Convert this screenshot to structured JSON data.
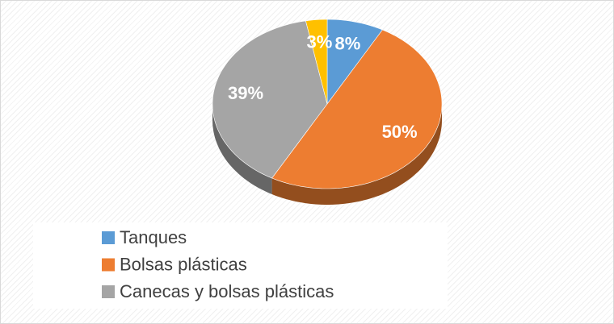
{
  "chart_data": {
    "type": "pie",
    "categories": [
      "Tanques",
      "Bolsas plásticas",
      "Canecas y bolsas plásticas",
      null
    ],
    "values": [
      8,
      50,
      39,
      3
    ],
    "value_labels": [
      "8%",
      "50%",
      "39%",
      "3%"
    ],
    "colors": [
      "#5b9bd5",
      "#ed7d31",
      "#a5a5a5",
      "#ffc000"
    ],
    "legend": "bottom"
  }
}
